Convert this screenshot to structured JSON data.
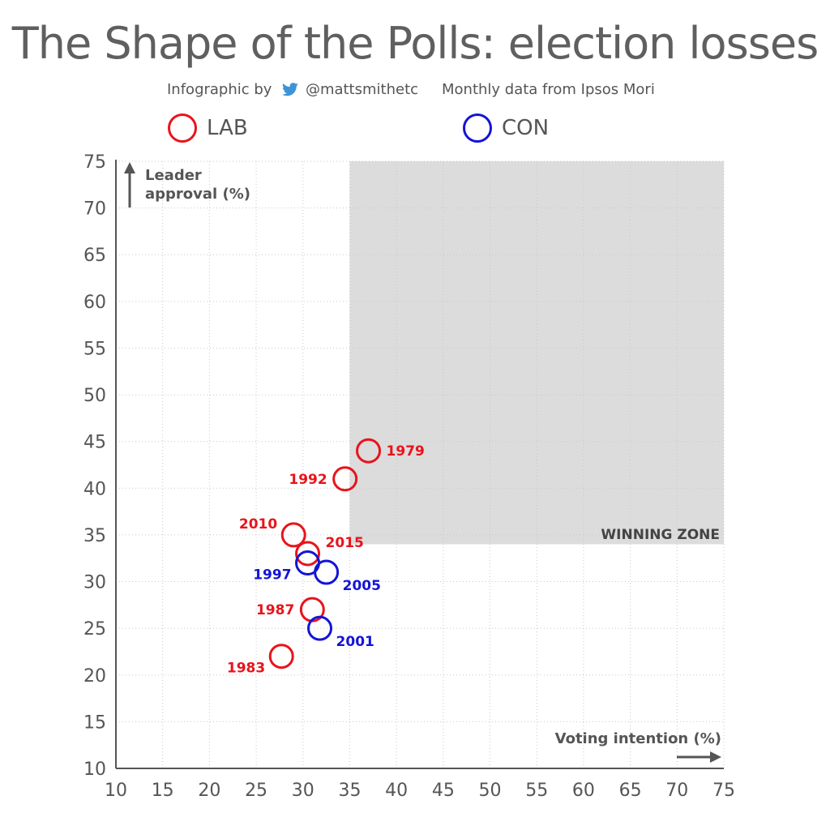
{
  "header": {
    "title": "The Shape of the Polls: election losses",
    "credit_prefix": "Infographic by",
    "credit_handle": "@mattsmithetc",
    "data_source": "Monthly data from Ipsos Mori"
  },
  "legend": {
    "items": [
      {
        "label": "LAB",
        "color": "#e8141b"
      },
      {
        "label": "CON",
        "color": "#1414d6"
      }
    ]
  },
  "colors": {
    "lab": "#e8141b",
    "con": "#1414d6",
    "zone": "#dcdcdc",
    "axis": "#555555"
  },
  "chart_data": {
    "type": "scatter",
    "title": "The Shape of the Polls: election losses",
    "xlabel": "Voting intention (%)",
    "ylabel_line1": "Leader",
    "ylabel_line2": "approval (%)",
    "xlim": [
      10,
      75
    ],
    "ylim": [
      10,
      75
    ],
    "xticks": [
      10,
      15,
      20,
      25,
      30,
      35,
      40,
      45,
      50,
      55,
      60,
      65,
      70,
      75
    ],
    "yticks": [
      10,
      15,
      20,
      25,
      30,
      35,
      40,
      45,
      50,
      55,
      60,
      65,
      70,
      75
    ],
    "grid": "dotted",
    "winning_zone": {
      "label": "WINNING ZONE",
      "x_range": [
        35,
        75
      ],
      "y_range": [
        34,
        75
      ]
    },
    "series": [
      {
        "name": "LAB",
        "color": "#e8141b",
        "points": [
          {
            "year": "1979",
            "x": 37,
            "y": 44,
            "label_side": "right"
          },
          {
            "year": "1992",
            "x": 34.5,
            "y": 41,
            "label_side": "left"
          },
          {
            "year": "2010",
            "x": 29,
            "y": 35,
            "label_side": "upper-left"
          },
          {
            "year": "2015",
            "x": 30.5,
            "y": 33,
            "label_side": "upper-right"
          },
          {
            "year": "1987",
            "x": 31,
            "y": 27,
            "label_side": "left"
          },
          {
            "year": "1983",
            "x": 27.7,
            "y": 22,
            "label_side": "lower-left"
          }
        ]
      },
      {
        "name": "CON",
        "color": "#1414d6",
        "points": [
          {
            "year": "1997",
            "x": 30.5,
            "y": 32,
            "label_side": "lower-left"
          },
          {
            "year": "2005",
            "x": 32.5,
            "y": 31,
            "label_side": "lower-right"
          },
          {
            "year": "2001",
            "x": 31.8,
            "y": 25,
            "label_side": "lower-right"
          }
        ]
      }
    ]
  }
}
